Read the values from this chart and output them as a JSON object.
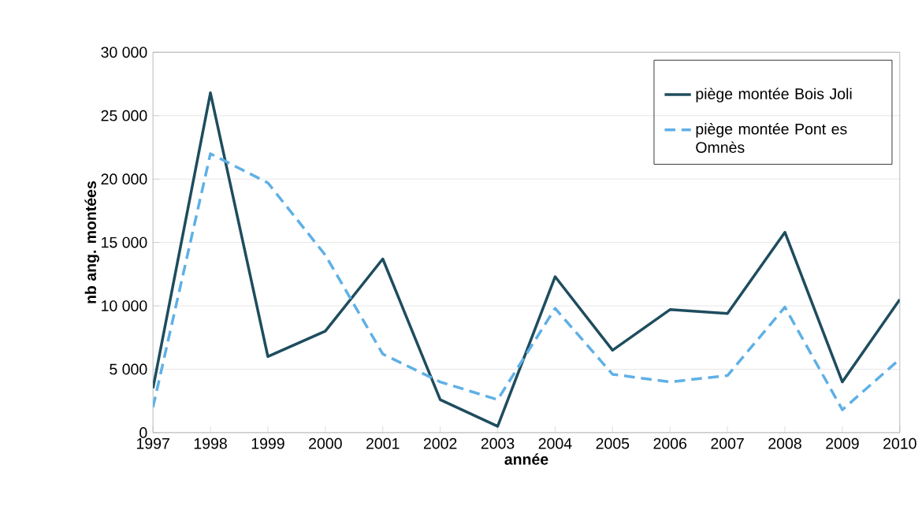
{
  "chart_data": {
    "type": "line",
    "xlabel": "année",
    "ylabel": "nb ang. montées",
    "x": [
      1997,
      1998,
      1999,
      2000,
      2001,
      2002,
      2003,
      2004,
      2005,
      2006,
      2007,
      2008,
      2009,
      2010
    ],
    "series": [
      {
        "name": "piège montée Bois Joli",
        "color": "#1e4d5e",
        "line_style": "solid",
        "values": [
          3500,
          26800,
          6000,
          8000,
          13700,
          2600,
          500,
          12300,
          6500,
          9700,
          9400,
          15800,
          4000,
          10500
        ]
      },
      {
        "name": "piège montée Pont es Omnès",
        "color": "#5fb0e6",
        "line_style": "dashed",
        "values": [
          2000,
          22000,
          19700,
          14000,
          6200,
          4000,
          2600,
          9800,
          4600,
          4000,
          4500,
          9900,
          1800,
          5800
        ]
      }
    ],
    "xlim": [
      1997,
      2010
    ],
    "xticks": [
      1997,
      1998,
      1999,
      2000,
      2001,
      2002,
      2003,
      2004,
      2005,
      2006,
      2007,
      2008,
      2009,
      2010
    ],
    "ylim": [
      0,
      30000
    ],
    "yticks": [
      {
        "value": 0,
        "label": "0"
      },
      {
        "value": 5000,
        "label": "5 000"
      },
      {
        "value": 10000,
        "label": "10 000"
      },
      {
        "value": 15000,
        "label": "15 000"
      },
      {
        "value": 20000,
        "label": "20 000"
      },
      {
        "value": 25000,
        "label": "25 000"
      },
      {
        "value": 30000,
        "label": "30 000"
      }
    ],
    "grid": "y",
    "legend": "top right",
    "marker": "none"
  }
}
